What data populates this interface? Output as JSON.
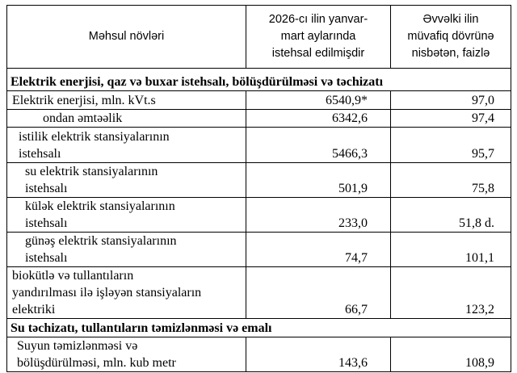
{
  "header": {
    "col1": "Məhsul növləri",
    "col2": "2026-cı ilin yanvar-\nmart aylarında\nistehsal edilmişdir",
    "col3": "Əvvəlki ilin\nmüvafiq dövrünə\nnisbətən, faizlə"
  },
  "sections": [
    {
      "title": "Elektrik enerjisi, qaz və buxar istehsalı, bölüşdürülməsi və təchizatı",
      "rows": [
        {
          "label": "Elektrik enerjisi, mln. kVt.s",
          "value": "6540,9*",
          "percent": "97,0"
        },
        {
          "label": "ondan əmtəəlik",
          "value": "6342,6",
          "percent": "97,4"
        },
        {
          "label": "istilik elektrik stansiyalarının\n istehsalı",
          "value": "5466,3",
          "percent": "95,7"
        },
        {
          "label": "su elektrik stansiyalarının\n istehsalı",
          "value": "501,9",
          "percent": "75,8"
        },
        {
          "label": "külək elektrik stansiyalarının\n istehsalı",
          "value": "233,0",
          "percent": "51,8 d."
        },
        {
          "label": "günəş elektrik stansiyalarının\n istehsalı",
          "value": "74,7",
          "percent": "101,1"
        },
        {
          "label": " biokütlə və tullantıların\nyandırılması ilə işləyən stansiyaların\nelektriki",
          "value": "66,7",
          "percent": "123,2"
        }
      ]
    },
    {
      "title": "Su təchizatı, tullantıların təmizlənməsi və emalı",
      "rows": [
        {
          "label": "Suyun təmizlənməsi və\nbölüşdürülməsi, mln. kub metr",
          "value": "143,6",
          "percent": "108,9"
        }
      ]
    }
  ]
}
